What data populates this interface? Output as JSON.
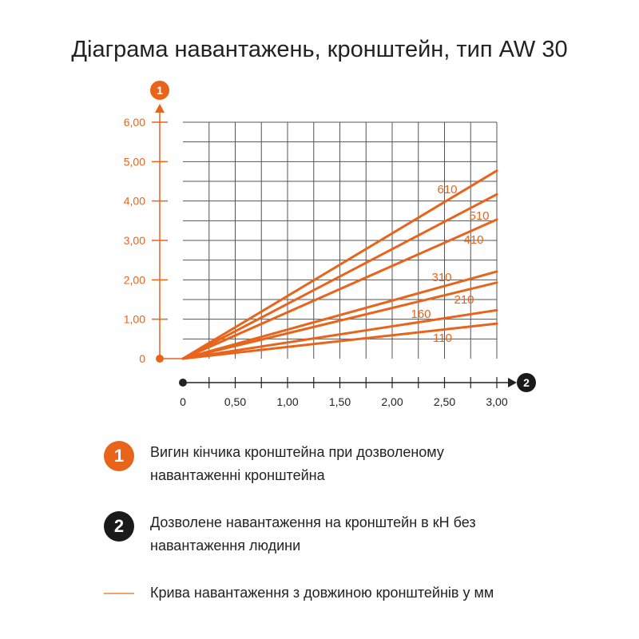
{
  "title": "Діаграма навантажень, кронштейн, тип AW 30",
  "colors": {
    "accent": "#e8641b",
    "axis": "#222222",
    "grid": "#555555",
    "legend_line": "#f0a36b"
  },
  "chart_data": {
    "type": "line",
    "title": "Діаграма навантажень, кронштейн, тип AW 30",
    "x_axis_marker": "2",
    "y_axis_marker": "1",
    "xlim": [
      0,
      3.0
    ],
    "ylim": [
      0,
      6.0
    ],
    "x_ticks": [
      "0",
      "0,50",
      "1,00",
      "1,50",
      "2,00",
      "2,50",
      "3,00"
    ],
    "y_ticks": [
      "0",
      "1,00",
      "2,00",
      "3,00",
      "4,00",
      "5,00",
      "6,00"
    ],
    "grid": true,
    "series": [
      {
        "name": "610",
        "x": [
          0,
          3.0
        ],
        "y": [
          0,
          4.77
        ]
      },
      {
        "name": "510",
        "x": [
          0,
          3.0
        ],
        "y": [
          0,
          4.17
        ]
      },
      {
        "name": "410",
        "x": [
          0,
          3.0
        ],
        "y": [
          0,
          3.53
        ]
      },
      {
        "name": "310",
        "x": [
          0,
          3.0
        ],
        "y": [
          0,
          2.21
        ]
      },
      {
        "name": "210",
        "x": [
          0,
          3.0
        ],
        "y": [
          0,
          1.93
        ]
      },
      {
        "name": "160",
        "x": [
          0,
          3.0
        ],
        "y": [
          0,
          1.23
        ]
      },
      {
        "name": "110",
        "x": [
          0,
          3.0
        ],
        "y": [
          0,
          0.89
        ]
      }
    ]
  },
  "legend": [
    {
      "badge": "1",
      "text": "Вигин кінчика кронштейна при дозволеному навантаженні кронштейна"
    },
    {
      "badge": "2",
      "text": "Дозволене навантаження на кронштейн в кН без навантаження людини"
    },
    {
      "text": "Крива навантаження з довжиною кронштейнів у мм"
    }
  ]
}
